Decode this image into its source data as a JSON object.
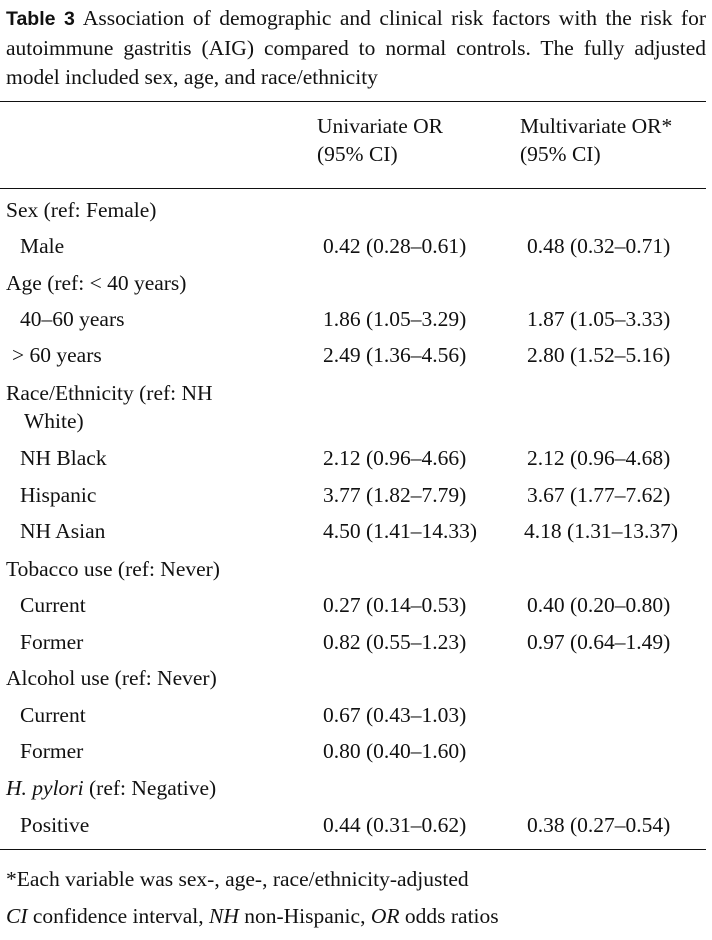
{
  "caption": {
    "label": "Table 3",
    "text": "Association of demographic and clinical risk factors with the risk for autoimmune gastritis (AIG) compared to normal controls. The fully adjusted model included sex, age, and race/ethnicity"
  },
  "header": {
    "col2_line1": "Univariate OR",
    "col2_line2": "(95% CI)",
    "col3_line1": "Multivariate OR*",
    "col3_line2": "(95% CI)"
  },
  "groups": {
    "sex": "Sex (ref: Female)",
    "age": "Age (ref: < 40 years)",
    "race_line1": "Race/Ethnicity (ref: NH",
    "race_line2": "White)",
    "tobacco": "Tobacco use (ref: Never)",
    "alcohol": "Alcohol use (ref: Never)",
    "hpylori_italic": "H. pylori",
    "hpylori_rest": " (ref: Negative)"
  },
  "rows": {
    "male": {
      "label": "Male",
      "uni": "0.42 (0.28–0.61)",
      "multi": "0.48 (0.32–0.71)"
    },
    "age_40_60": {
      "label": "40–60 years",
      "uni": "1.86 (1.05–3.29)",
      "multi": "1.87 (1.05–3.33)"
    },
    "age_60": {
      "label": "> 60 years",
      "uni": "2.49 (1.36–4.56)",
      "multi": "2.80 (1.52–5.16)"
    },
    "nh_black": {
      "label": "NH Black",
      "uni": "2.12 (0.96–4.66)",
      "multi": "2.12 (0.96–4.68)"
    },
    "hispanic": {
      "label": "Hispanic",
      "uni": "3.77 (1.82–7.79)",
      "multi": "3.67 (1.77–7.62)"
    },
    "nh_asian": {
      "label": "NH Asian",
      "uni": "4.50 (1.41–14.33)",
      "multi": "4.18 (1.31–13.37)"
    },
    "tob_current": {
      "label": "Current",
      "uni": "0.27 (0.14–0.53)",
      "multi": "0.40 (0.20–0.80)"
    },
    "tob_former": {
      "label": "Former",
      "uni": "0.82 (0.55–1.23)",
      "multi": "0.97 (0.64–1.49)"
    },
    "alc_current": {
      "label": "Current",
      "uni": "0.67 (0.43–1.03)",
      "multi": ""
    },
    "alc_former": {
      "label": "Former",
      "uni": "0.80 (0.40–1.60)",
      "multi": ""
    },
    "hp_positive": {
      "label": "Positive",
      "uni": "0.44 (0.31–0.62)",
      "multi": "0.38 (0.27–0.54)"
    }
  },
  "footnotes": {
    "note1": "*Each variable was sex-, age-, race/ethnicity-adjusted",
    "abbr_ci": "CI",
    "abbr_ci_text": " confidence interval, ",
    "abbr_nh": "NH",
    "abbr_nh_text": " non-Hispanic, ",
    "abbr_or": "OR",
    "abbr_or_text": " odds ratios"
  }
}
